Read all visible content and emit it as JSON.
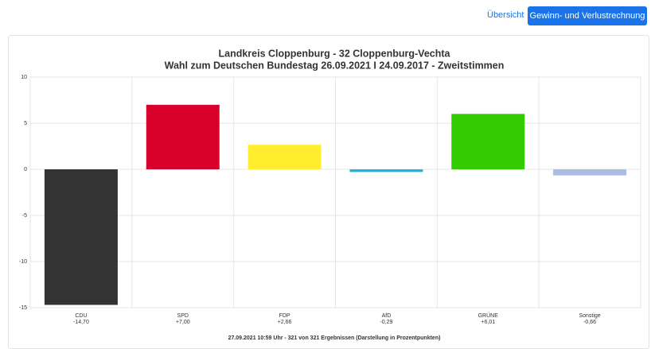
{
  "nav": {
    "overview": "Übersicht",
    "button": "Gewinn- und Verlustrechnung"
  },
  "chart_data": {
    "type": "bar",
    "title": "Landkreis Cloppenburg - 32 Cloppenburg-Vechta",
    "subtitle": "Wahl zum Deutschen Bundestag 26.09.2021  I 24.09.2017 - Zweitstimmen",
    "categories": [
      "CDU",
      "SPD",
      "FDP",
      "AfD",
      "GRÜNE",
      "Sonstige"
    ],
    "values": [
      -14.7,
      7.0,
      2.66,
      -0.29,
      6.01,
      -0.66
    ],
    "value_labels": [
      "-14,70",
      "+7,00",
      "+2,66",
      "-0,29",
      "+6,01",
      "-0,66"
    ],
    "colors": [
      "#333333",
      "#d7002b",
      "#ffed2e",
      "#1eb4e6",
      "#33cc00",
      "#aabbe6"
    ],
    "ylim": [
      -15,
      10
    ],
    "yticks": [
      10,
      5,
      0,
      -5,
      -10,
      -15
    ],
    "grid": true,
    "footnote": "27.09.2021 10:59 Uhr - 321 von 321 Ergebnissen (Darstellung in Prozentpunkten)"
  }
}
